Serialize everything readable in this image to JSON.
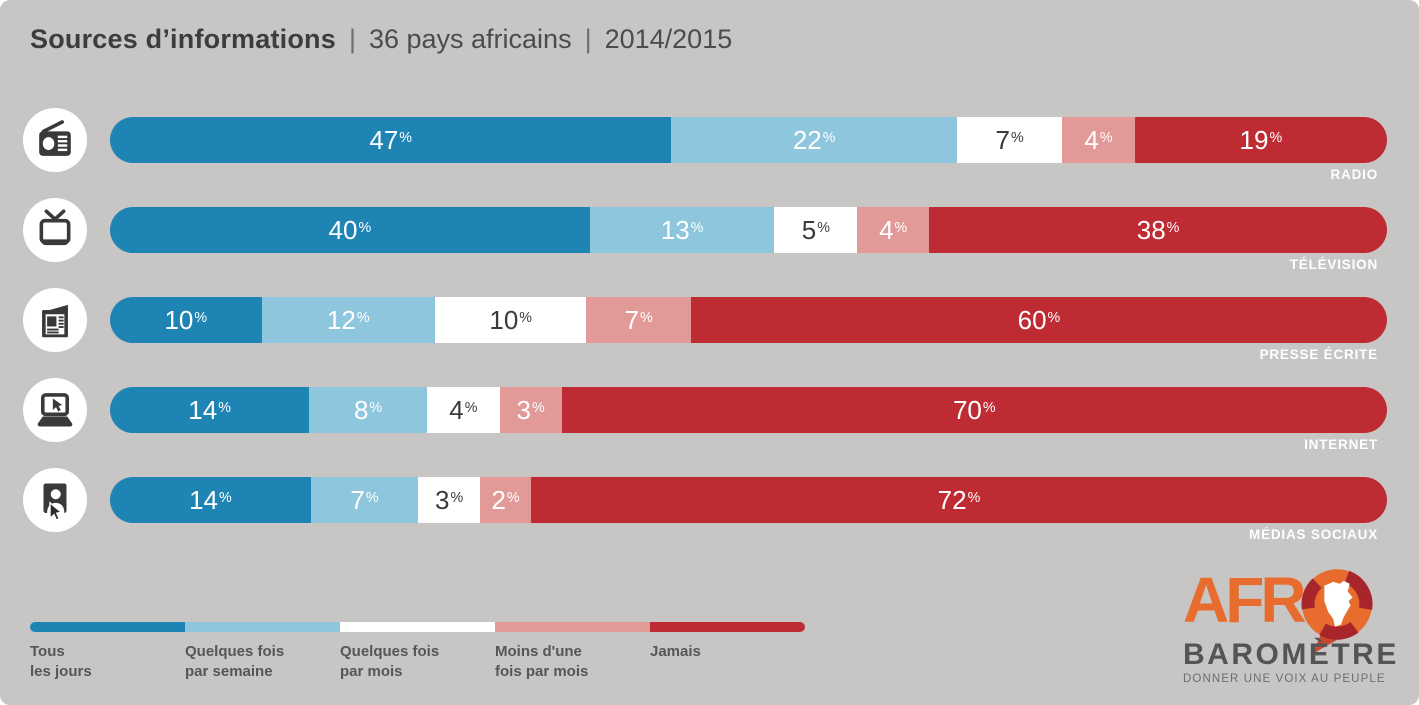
{
  "title": {
    "main": "Sources d’informations",
    "separator": "|",
    "subtitle_1": "36 pays africains",
    "subtitle_2": "2014/2015"
  },
  "colors": {
    "background": "#c7c6c4",
    "icon_glyph": "#3a3937",
    "bar_text_light": "#ffffff",
    "bar_text_dark": "#3b3b3b",
    "title_text": "#3d3d3d",
    "legend_text": "#55565a"
  },
  "chart_data": {
    "type": "bar",
    "orientation": "horizontal-stacked",
    "title": "Sources d’informations | 36 pays africains | 2014/2015",
    "unit": "%",
    "xlim": [
      0,
      100
    ],
    "legend_position": "bottom-left",
    "rows": [
      {
        "label": "RADIO",
        "icon": "radio-icon"
      },
      {
        "label": "TÉLÉVISION",
        "icon": "tv-icon"
      },
      {
        "label": "PRESSE ÉCRITE",
        "icon": "newspaper-icon"
      },
      {
        "label": "INTERNET",
        "icon": "laptop-icon"
      },
      {
        "label": "MÉDIAS SOCIAUX",
        "icon": "social-media-icon"
      }
    ],
    "series": [
      {
        "name": "Tous les jours",
        "color": "#1e84b4",
        "values": [
          47,
          40,
          10,
          14,
          14
        ]
      },
      {
        "name": "Quelques fois par semaine",
        "color": "#8dc6dd",
        "values": [
          22,
          13,
          12,
          8,
          7
        ]
      },
      {
        "name": "Quelques fois par mois",
        "color": "#ffffff",
        "values": [
          7,
          5,
          10,
          4,
          3
        ]
      },
      {
        "name": "Moins d'une fois par mois",
        "color": "#e19a97",
        "values": [
          4,
          4,
          7,
          3,
          2
        ]
      },
      {
        "name": "Jamais",
        "color": "#bf2b33",
        "values": [
          19,
          38,
          60,
          70,
          72
        ]
      }
    ]
  },
  "legend": {
    "items": [
      {
        "lines": "Tous\nles jours"
      },
      {
        "lines": "Quelques fois\npar semaine"
      },
      {
        "lines": "Quelques fois\npar mois"
      },
      {
        "lines": "Moins d'une\nfois par mois"
      },
      {
        "lines": "Jamais"
      }
    ]
  },
  "logo": {
    "text_afr": "AFR",
    "text_barometre": "BAROMÈTRE",
    "tagline": "DONNER UNE VOIX AU PEUPLE",
    "orange": "#e76c2e",
    "dark_red": "#a8262b"
  }
}
